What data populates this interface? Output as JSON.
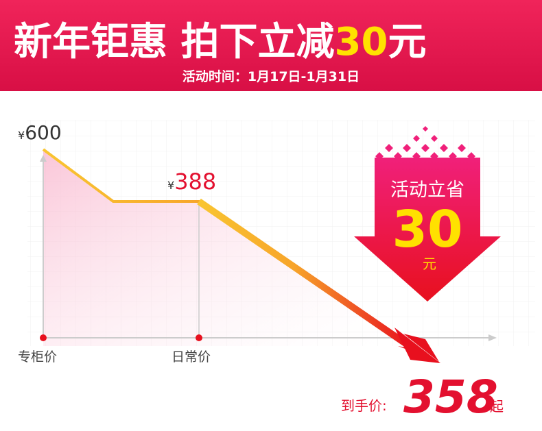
{
  "header": {
    "title": "新年钜惠 拍下立减",
    "title_amount": "30",
    "title_unit": "元",
    "subtitle": "活动时间：1月17日-1月31日"
  },
  "prices": [
    {
      "currency": "¥",
      "amount": "600"
    },
    {
      "currency": "¥",
      "amount": "388"
    }
  ],
  "axis_labels": [
    "专柜价",
    "日常价"
  ],
  "badge": {
    "text": "活动立省",
    "amount": "30",
    "unit": "元"
  },
  "final": {
    "label": "到手价:",
    "amount": "358",
    "suffix": "起"
  }
}
